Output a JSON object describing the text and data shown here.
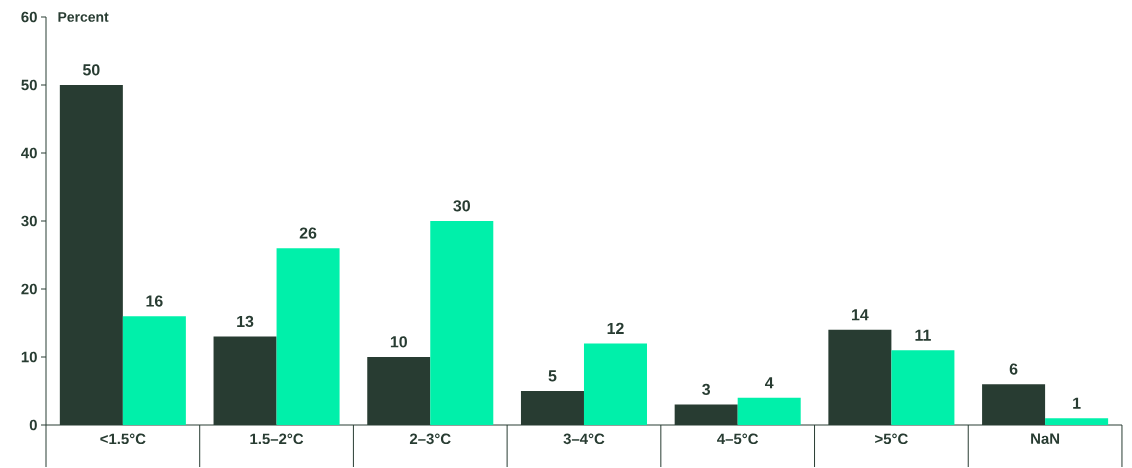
{
  "chart_data": {
    "type": "bar",
    "ylabel": "Percent",
    "categories": [
      "<1.5°C",
      "1.5–2°C",
      "2–3°C",
      "3–4°C",
      "4–5°C",
      ">5°C",
      "NaN"
    ],
    "series": [
      {
        "color": "#283c32",
        "values": [
          50,
          13,
          10,
          5,
          3,
          14,
          6
        ]
      },
      {
        "color": "#00f0aa",
        "values": [
          16,
          26,
          30,
          12,
          4,
          11,
          1
        ]
      }
    ],
    "ylim": [
      0,
      60
    ],
    "yticks": [
      0,
      10,
      20,
      30,
      40,
      50,
      60
    ],
    "data_labels": true
  }
}
